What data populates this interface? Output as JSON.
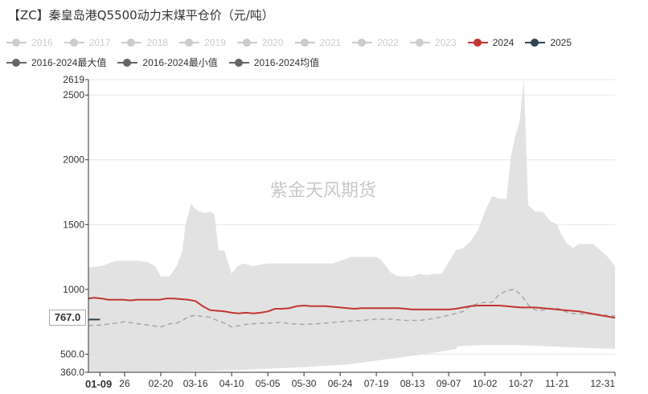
{
  "title": "【ZC】秦皇岛港Q5500动力末煤平仓价（元/吨）",
  "watermark": "紫金天风期货",
  "legend": [
    {
      "label": "2016",
      "color": "#cccccc",
      "type": "dot",
      "enabled": false
    },
    {
      "label": "2017",
      "color": "#cccccc",
      "type": "dot",
      "enabled": false
    },
    {
      "label": "2018",
      "color": "#cccccc",
      "type": "dot",
      "enabled": false
    },
    {
      "label": "2019",
      "color": "#cccccc",
      "type": "dot",
      "enabled": false
    },
    {
      "label": "2020",
      "color": "#cccccc",
      "type": "dot",
      "enabled": false
    },
    {
      "label": "2021",
      "color": "#cccccc",
      "type": "dot",
      "enabled": false
    },
    {
      "label": "2022",
      "color": "#cccccc",
      "type": "dot",
      "enabled": false
    },
    {
      "label": "2023",
      "color": "#cccccc",
      "type": "dot",
      "enabled": false
    },
    {
      "label": "2024",
      "color": "#c23531",
      "type": "dot",
      "enabled": true
    },
    {
      "label": "2025",
      "color": "#2f4554",
      "type": "dot",
      "enabled": true
    },
    {
      "label": "2016-2024最大值",
      "color": "#666666",
      "type": "dot",
      "enabled": true
    },
    {
      "label": "2016-2024最小值",
      "color": "#666666",
      "type": "dot",
      "enabled": true
    },
    {
      "label": "2016-2024均值",
      "color": "#666666",
      "type": "dot",
      "enabled": true
    }
  ],
  "tooltip_value": "767.0",
  "selected_x": "01-09",
  "chart_data": {
    "type": "line",
    "title": "【ZC】秦皇岛港Q5500动力末煤平仓价（元/吨）",
    "xlabel": "",
    "ylabel": "",
    "ylim": [
      360,
      2619
    ],
    "y_ticks": [
      360.0,
      500.0,
      1000,
      1500,
      2000,
      2500,
      2619
    ],
    "y_tick_labels": [
      "360.0",
      "500.0",
      "1000",
      "1500",
      "2000",
      "2500",
      "2619"
    ],
    "x_tick_labels": [
      "01-09",
      "26",
      "02-20",
      "03-16",
      "04-10",
      "05-05",
      "05-30",
      "06-24",
      "07-19",
      "08-13",
      "09-07",
      "10-02",
      "10-27",
      "11-21",
      "12-31"
    ],
    "x_tick_days": [
      9,
      26,
      51,
      75,
      100,
      125,
      150,
      175,
      200,
      225,
      250,
      275,
      300,
      325,
      365
    ],
    "grid": true,
    "series": [
      {
        "name": "2016-2024最大值",
        "style": "band-top",
        "x": [
          1,
          10,
          20,
          26,
          35,
          42,
          47,
          51,
          57,
          62,
          66,
          68,
          72,
          75,
          78,
          82,
          85,
          88,
          91,
          95,
          100,
          104,
          108,
          115,
          125,
          140,
          150,
          160,
          170,
          178,
          182,
          190,
          200,
          203,
          210,
          215,
          220,
          225,
          230,
          235,
          240,
          245,
          255,
          260,
          265,
          270,
          275,
          280,
          285,
          290,
          293,
          296,
          299,
          302,
          305,
          310,
          315,
          320,
          325,
          328,
          332,
          336,
          340,
          345,
          350,
          355,
          360,
          365
        ],
        "values": [
          1170,
          1180,
          1220,
          1220,
          1220,
          1210,
          1180,
          1100,
          1100,
          1180,
          1300,
          1500,
          1660,
          1620,
          1600,
          1590,
          1600,
          1580,
          1300,
          1300,
          1120,
          1180,
          1200,
          1180,
          1200,
          1200,
          1200,
          1200,
          1200,
          1230,
          1250,
          1250,
          1250,
          1230,
          1130,
          1100,
          1100,
          1100,
          1120,
          1110,
          1120,
          1120,
          1300,
          1320,
          1370,
          1450,
          1600,
          1720,
          1700,
          1700,
          2020,
          2180,
          2290,
          2619,
          1650,
          1600,
          1600,
          1530,
          1500,
          1420,
          1350,
          1320,
          1350,
          1350,
          1350,
          1300,
          1250,
          1180
        ]
      },
      {
        "name": "2016-2024最小值",
        "style": "band-bottom",
        "x": [
          1,
          50,
          80,
          100,
          120,
          150,
          180,
          200,
          220,
          240,
          255,
          256,
          270,
          300,
          320,
          340,
          365
        ],
        "values": [
          360,
          365,
          370,
          375,
          385,
          400,
          420,
          450,
          480,
          510,
          540,
          560,
          570,
          570,
          560,
          550,
          540
        ]
      },
      {
        "name": "2016-2024均值",
        "color": "#aaaaaa",
        "style": "dashed",
        "x": [
          1,
          10,
          20,
          26,
          35,
          45,
          51,
          57,
          62,
          66,
          70,
          75,
          80,
          85,
          90,
          95,
          100,
          110,
          120,
          125,
          135,
          140,
          150,
          160,
          170,
          180,
          190,
          200,
          210,
          220,
          230,
          240,
          250,
          260,
          265,
          270,
          275,
          280,
          285,
          290,
          295,
          300,
          305,
          310,
          315,
          320,
          325,
          330,
          335,
          340,
          345,
          350,
          355,
          360,
          365
        ],
        "values": [
          720,
          725,
          740,
          750,
          735,
          720,
          710,
          735,
          740,
          760,
          790,
          800,
          790,
          785,
          760,
          740,
          710,
          730,
          740,
          740,
          745,
          735,
          730,
          735,
          745,
          755,
          760,
          770,
          770,
          760,
          760,
          775,
          800,
          830,
          870,
          890,
          900,
          900,
          960,
          990,
          1000,
          960,
          880,
          840,
          840,
          850,
          855,
          830,
          815,
          810,
          810,
          810,
          805,
          800,
          795
        ]
      },
      {
        "name": "2024",
        "color": "#c23531",
        "style": "solid",
        "x": [
          1,
          5,
          10,
          15,
          20,
          25,
          30,
          35,
          40,
          45,
          50,
          55,
          60,
          65,
          70,
          75,
          80,
          85,
          90,
          95,
          100,
          105,
          110,
          115,
          120,
          125,
          130,
          135,
          140,
          145,
          150,
          155,
          160,
          165,
          170,
          175,
          180,
          185,
          190,
          195,
          200,
          205,
          210,
          215,
          220,
          225,
          230,
          235,
          240,
          245,
          250,
          255,
          260,
          265,
          270,
          275,
          280,
          285,
          290,
          295,
          300,
          305,
          310,
          315,
          320,
          325,
          330,
          335,
          340,
          345,
          350,
          355,
          360,
          365
        ],
        "values": [
          930,
          935,
          930,
          920,
          920,
          920,
          915,
          920,
          920,
          920,
          920,
          930,
          930,
          925,
          920,
          910,
          870,
          840,
          835,
          830,
          820,
          815,
          820,
          815,
          820,
          830,
          850,
          850,
          855,
          870,
          875,
          870,
          870,
          870,
          865,
          860,
          855,
          850,
          855,
          855,
          855,
          855,
          855,
          855,
          850,
          845,
          845,
          845,
          845,
          845,
          845,
          850,
          860,
          870,
          875,
          875,
          875,
          875,
          870,
          865,
          860,
          860,
          860,
          855,
          850,
          845,
          840,
          835,
          830,
          820,
          810,
          800,
          790,
          780
        ]
      },
      {
        "name": "2025",
        "color": "#2f4554",
        "style": "solid",
        "x": [
          1,
          3,
          6,
          9
        ],
        "values": [
          765,
          768,
          767,
          767
        ]
      }
    ]
  }
}
